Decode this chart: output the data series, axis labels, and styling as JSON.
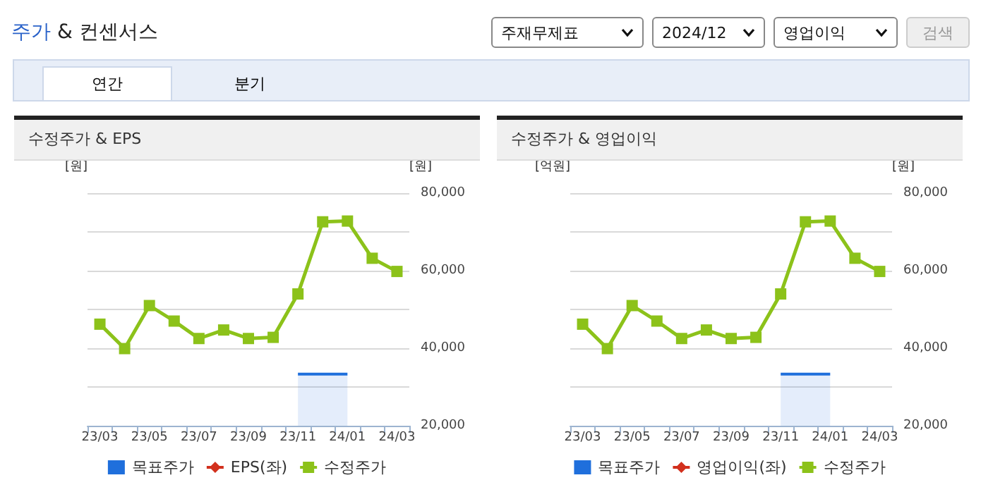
{
  "chart_data": [
    {
      "type": "other",
      "title": "주가 & 컨센서스",
      "annotations": [
        "주재무제표",
        "2024/12",
        "영업이익",
        "검색",
        "연간",
        "분기"
      ]
    },
    {
      "type": "line",
      "title": "수정주가 & EPS",
      "ylabel": "[원]",
      "y2label": "[원]",
      "categories": [
        "23/03",
        null,
        "23/05",
        null,
        "23/07",
        null,
        "23/09",
        null,
        "23/11",
        null,
        "24/01",
        null,
        "24/03"
      ],
      "series": [
        {
          "name": "목표주가",
          "type": "area",
          "color": "#1f6fdc",
          "marker": "none",
          "axis": "y2",
          "values": [
            null,
            null,
            null,
            null,
            null,
            null,
            null,
            null,
            33300,
            33300,
            33300,
            null,
            null
          ]
        },
        {
          "name": "EPS(좌)",
          "type": "line",
          "color": "#d2301d",
          "marker": "diamond",
          "values": [
            null,
            null,
            null,
            null,
            null,
            null,
            null,
            null,
            null,
            null,
            null,
            null,
            null
          ]
        },
        {
          "name": "수정주가",
          "type": "line",
          "color": "#8cc21a",
          "axis": "y2",
          "values": [
            46200,
            39900,
            51000,
            47000,
            42500,
            44700,
            42500,
            42800,
            54000,
            72600,
            72800,
            63200,
            59800
          ]
        }
      ],
      "y2lim": [
        20000,
        80000
      ],
      "y2ticks": [
        {
          "value": 20000,
          "label": "20,000"
        },
        {
          "value": 40000,
          "label": "40,000"
        },
        {
          "value": 60000,
          "label": "60,000"
        },
        {
          "value": 80000,
          "label": "80,000"
        }
      ],
      "marker": "square",
      "grid": "y",
      "legend": "bottom"
    },
    {
      "type": "line",
      "title": "수정주가 & 영업이익",
      "ylabel": "[억원]",
      "y2label": "[원]",
      "categories": [
        "23/03",
        null,
        "23/05",
        null,
        "23/07",
        null,
        "23/09",
        null,
        "23/11",
        null,
        "24/01",
        null,
        "24/03"
      ],
      "series": [
        {
          "name": "목표주가",
          "type": "area",
          "color": "#1f6fdc",
          "marker": "none",
          "axis": "y2",
          "values": [
            null,
            null,
            null,
            null,
            null,
            null,
            null,
            null,
            33300,
            33300,
            33300,
            null,
            null
          ]
        },
        {
          "name": "영업이익(좌)",
          "type": "line",
          "color": "#d2301d",
          "marker": "diamond",
          "values": [
            null,
            null,
            null,
            null,
            null,
            null,
            null,
            null,
            null,
            null,
            null,
            null,
            null
          ]
        },
        {
          "name": "수정주가",
          "type": "line",
          "color": "#8cc21a",
          "axis": "y2",
          "values": [
            46200,
            39900,
            51000,
            47000,
            42500,
            44700,
            42500,
            42800,
            54000,
            72600,
            72800,
            63200,
            59800
          ]
        }
      ],
      "y2lim": [
        20000,
        80000
      ],
      "y2ticks": [
        {
          "value": 20000,
          "label": "20,000"
        },
        {
          "value": 40000,
          "label": "40,000"
        },
        {
          "value": 60000,
          "label": "60,000"
        },
        {
          "value": 80000,
          "label": "80,000"
        }
      ],
      "marker": "square",
      "grid": "y",
      "legend": "bottom"
    }
  ]
}
